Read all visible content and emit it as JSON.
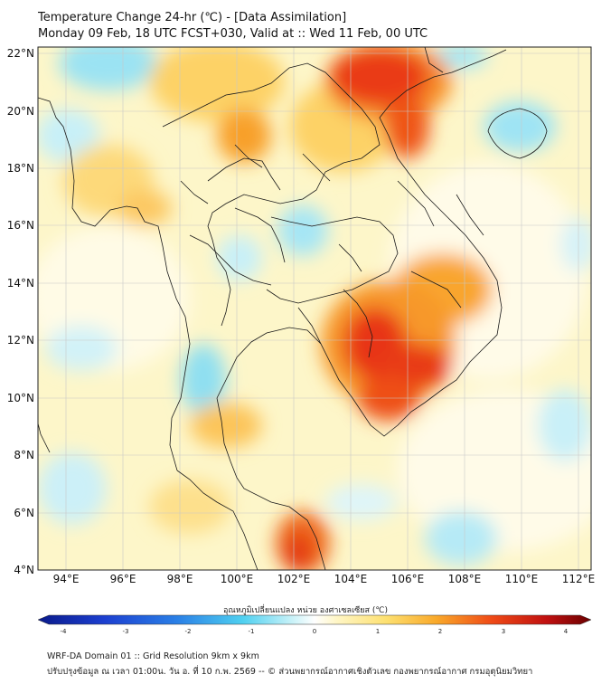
{
  "header": {
    "title_line1": "Temperature Change 24-hr (℃) - [Data Assimilation]",
    "title_line2": "Monday 09 Feb, 18 UTC FCST+030, Valid at :: Wed 11 Feb, 00 UTC"
  },
  "map": {
    "lat_labels": [
      "22°N",
      "20°N",
      "18°N",
      "16°N",
      "14°N",
      "12°N",
      "10°N",
      "8°N",
      "6°N",
      "4°N"
    ],
    "lon_labels": [
      "94°E",
      "96°E",
      "98°E",
      "100°E",
      "102°E",
      "104°E",
      "106°E",
      "108°E",
      "110°E",
      "112°E"
    ],
    "lat_range": [
      4,
      22
    ],
    "lon_range": [
      93,
      112.5
    ],
    "grid": true,
    "colors": {
      "warm_strong": "#e82a14",
      "warm": "#f7a52a",
      "warm_light": "#fde79a",
      "neutral": "#fdfbe2",
      "cool_light": "#d6f2f8",
      "cool": "#8ee0f2"
    }
  },
  "colorbar": {
    "label": "อุณหภูมิเปลี่ยนแปลง หน่วย องศาเซลเซียส (℃)",
    "ticks": [
      "-4",
      "-3",
      "-2",
      "-1",
      "0",
      "1",
      "2",
      "3",
      "4"
    ],
    "min": -4,
    "max": 4
  },
  "footer": {
    "line1": "WRF-DA Domain 01 :: Grid Resolution 9km x 9km",
    "line2": "ปรับปรุงข้อมูล ณ เวลา 01:00น. วัน อ. ที่ 10 ก.พ. 2569 -- © ส่วนพยากรณ์อากาศเชิงตัวเลข กองพยากรณ์อากาศ กรมอุตุนิยมวิทยา"
  }
}
